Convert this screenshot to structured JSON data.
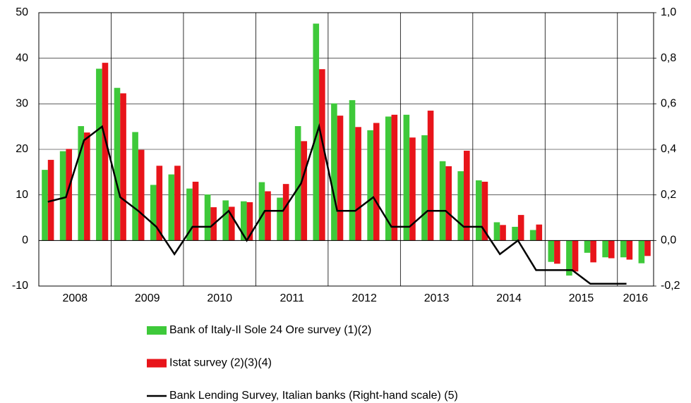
{
  "chart_data": {
    "type": "bar",
    "categories": [
      "2008",
      null,
      null,
      null,
      "2009",
      null,
      null,
      null,
      "2010",
      null,
      null,
      null,
      "2011",
      null,
      null,
      null,
      "2012",
      null,
      null,
      null,
      "2013",
      null,
      null,
      null,
      "2014",
      null,
      null,
      null,
      "2015",
      null,
      null,
      null,
      "2016",
      null
    ],
    "series": [
      {
        "name": "Bank of Italy-Il Sole 24 Ore survey (1)(2)",
        "color": "#3ec93a",
        "type": "bar",
        "values": [
          15.5,
          19.6,
          25.1,
          37.7,
          33.5,
          23.8,
          12.2,
          14.5,
          11.4,
          10.1,
          8.8,
          8.6,
          12.8,
          9.4,
          25.1,
          47.6,
          30.1,
          30.8,
          24.2,
          27.2,
          27.6,
          23.1,
          17.4,
          15.2,
          13.2,
          4.0,
          3.0,
          2.3,
          -4.7,
          -7.7,
          -2.7,
          -3.7,
          -3.7,
          -5.0
        ]
      },
      {
        "name": "Istat survey (2)(3)(4)",
        "color": "#e8141a",
        "type": "bar",
        "values": [
          17.7,
          20.1,
          23.7,
          39.0,
          32.3,
          19.9,
          16.4,
          16.4,
          12.9,
          7.3,
          7.4,
          8.4,
          10.8,
          12.4,
          21.8,
          37.6,
          27.4,
          24.9,
          25.8,
          27.6,
          22.6,
          28.5,
          16.3,
          19.7,
          12.9,
          3.4,
          5.6,
          3.5,
          -5.1,
          -6.8,
          -4.8,
          -3.9,
          -4.2,
          -3.4
        ]
      },
      {
        "name": "Bank Lending Survey, Italian banks (Right-hand scale) (5)",
        "color": "#000000",
        "type": "line",
        "axis": "y2",
        "values": [
          0.17,
          0.19,
          0.44,
          0.5,
          0.19,
          0.13,
          0.06,
          -0.06,
          0.06,
          0.06,
          0.13,
          0.0,
          0.13,
          0.13,
          0.25,
          0.5,
          0.13,
          0.13,
          0.19,
          0.06,
          0.06,
          0.13,
          0.13,
          0.06,
          0.06,
          -0.06,
          0.0,
          -0.13,
          -0.13,
          -0.13,
          -0.19,
          -0.19,
          -0.19,
          null
        ]
      }
    ],
    "ylim": [
      -10,
      50
    ],
    "yticks": [
      -10,
      0,
      10,
      20,
      30,
      40,
      50
    ],
    "y2lim": [
      -0.2,
      1.0
    ],
    "y2ticks": [
      {
        "value": -0.2,
        "label": "-0,2"
      },
      {
        "value": 0.0,
        "label": "0,0"
      },
      {
        "value": 0.2,
        "label": "0,2"
      },
      {
        "value": 0.4,
        "label": "0,4"
      },
      {
        "value": 0.6,
        "label": "0,6"
      },
      {
        "value": 0.8,
        "label": "0,8"
      },
      {
        "value": 1.0,
        "label": "1,0"
      }
    ],
    "grid": true
  }
}
